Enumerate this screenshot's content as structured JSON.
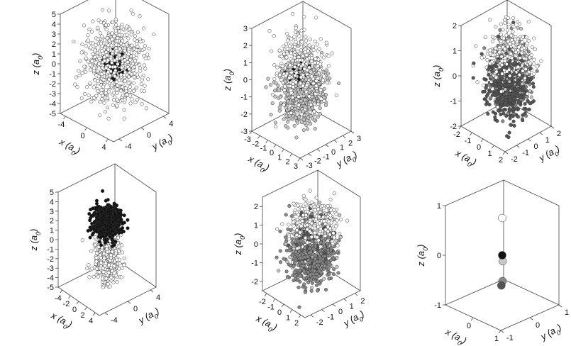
{
  "figure": {
    "panel_count": 6,
    "point_style": "circles",
    "colors": {
      "white_point_fill": "#ffffff",
      "light_point_fill": "#c8c8c8",
      "gray_point_fill": "#8a8a8a",
      "dark_point_fill": "#555555",
      "black_point_fill": "#111111",
      "point_stroke": "#333333",
      "frame": "#444444"
    }
  },
  "chart_data": [
    {
      "id": "panel-1",
      "type": "scatter",
      "projection": "3d",
      "xlabel": "x (a",
      "ylabel": "y (a",
      "zlabel": "z (a",
      "label_subscript": "0",
      "label_close": ")",
      "xlim": [
        -5,
        5
      ],
      "ylim": [
        -5,
        5
      ],
      "zlim": [
        -5,
        5
      ],
      "x_ticks": [
        -4,
        0,
        4
      ],
      "y_ticks": [
        -4,
        0,
        4
      ],
      "z_ticks": [
        -5,
        -4,
        -3,
        -2,
        -1,
        0,
        1,
        2,
        3,
        4,
        5
      ],
      "x_tick_labels": [
        "-4",
        "0",
        "4"
      ],
      "y_tick_labels": [
        "-4",
        "0",
        "4"
      ],
      "z_tick_labels": [
        "-5",
        "-4",
        "-3",
        "-2",
        "-1",
        "0",
        "1",
        "2",
        "3",
        "4",
        "5"
      ],
      "clouds": [
        {
          "shade": "white",
          "count": 720,
          "center": [
            0,
            0,
            0
          ],
          "sd": [
            1.9,
            1.9,
            1.9
          ],
          "seed": 11
        },
        {
          "shade": "black",
          "count": 80,
          "center": [
            0,
            0,
            -0.1
          ],
          "sd": [
            0.6,
            0.6,
            0.6
          ],
          "seed": 12
        }
      ],
      "points": []
    },
    {
      "id": "panel-2",
      "type": "scatter",
      "projection": "3d",
      "xlabel": "x (a",
      "ylabel": "y (a",
      "zlabel": "z (a",
      "label_subscript": "0",
      "label_close": ")",
      "xlim": [
        -3,
        3
      ],
      "ylim": [
        -3,
        3
      ],
      "zlim": [
        -3,
        3
      ],
      "x_ticks": [
        -3,
        -2,
        -1,
        0,
        1,
        2,
        3
      ],
      "y_ticks": [
        -3,
        -2,
        -1,
        0,
        1,
        2,
        3
      ],
      "z_ticks": [
        -3,
        -2,
        -1,
        0,
        1,
        2,
        3
      ],
      "x_tick_labels": [
        "-3",
        "-2",
        "-1",
        "0",
        "1",
        "2",
        "3"
      ],
      "y_tick_labels": [
        "-3",
        "-2",
        "-1",
        "0",
        "1",
        "2",
        "3"
      ],
      "z_tick_labels": [
        "-3",
        "-2",
        "-1",
        "0",
        "1",
        "2",
        "3"
      ],
      "clouds": [
        {
          "shade": "white",
          "count": 560,
          "center": [
            0,
            0,
            0.4
          ],
          "sd": [
            1.0,
            1.0,
            1.0
          ],
          "seed": 21
        },
        {
          "shade": "light",
          "count": 560,
          "center": [
            0,
            0,
            -0.6
          ],
          "sd": [
            1.0,
            1.0,
            0.9
          ],
          "seed": 22
        },
        {
          "shade": "black",
          "count": 70,
          "center": [
            0,
            0,
            0.2
          ],
          "sd": [
            0.4,
            0.4,
            0.4
          ],
          "seed": 23
        }
      ],
      "points": []
    },
    {
      "id": "panel-3",
      "type": "scatter",
      "projection": "3d",
      "xlabel": "x (a",
      "ylabel": "y (a",
      "zlabel": "z (a",
      "label_subscript": "0",
      "label_close": ")",
      "xlim": [
        -2,
        2
      ],
      "ylim": [
        -2,
        2
      ],
      "zlim": [
        -2,
        2
      ],
      "x_ticks": [
        -2,
        -1,
        0,
        1,
        2
      ],
      "y_ticks": [
        -2,
        -1,
        0,
        1,
        2
      ],
      "z_ticks": [
        -2,
        -1,
        0,
        1,
        2
      ],
      "x_tick_labels": [
        "-2",
        "-1",
        "0",
        "1",
        "2"
      ],
      "y_tick_labels": [
        "-2",
        "-1",
        "0",
        "1",
        "2"
      ],
      "z_tick_labels": [
        "-2",
        "-1",
        "0",
        "1",
        "2"
      ],
      "clouds": [
        {
          "shade": "white",
          "count": 420,
          "center": [
            0.1,
            0.2,
            0.7
          ],
          "sd": [
            0.7,
            0.7,
            0.55
          ],
          "seed": 31
        },
        {
          "shade": "dark",
          "count": 450,
          "center": [
            0.6,
            -0.4,
            -0.2
          ],
          "sd": [
            0.65,
            0.6,
            0.6
          ],
          "seed": 32
        },
        {
          "shade": "gray",
          "count": 450,
          "center": [
            -0.3,
            0.7,
            -0.3
          ],
          "sd": [
            0.6,
            0.6,
            0.6
          ],
          "seed": 33
        },
        {
          "shade": "light",
          "count": 200,
          "center": [
            0.2,
            0.3,
            0.2
          ],
          "sd": [
            0.5,
            0.5,
            0.5
          ],
          "seed": 34
        }
      ],
      "points": []
    },
    {
      "id": "panel-4",
      "type": "scatter",
      "projection": "3d",
      "xlabel": "x (a",
      "ylabel": "y (a",
      "zlabel": "z (a",
      "label_subscript": "0",
      "label_close": ")",
      "xlim": [
        -5,
        5
      ],
      "ylim": [
        -5,
        5
      ],
      "zlim": [
        -5,
        5
      ],
      "x_ticks": [
        -4,
        -2,
        0,
        2,
        4
      ],
      "y_ticks": [
        -4,
        0,
        4
      ],
      "z_ticks": [
        -5,
        -4,
        -3,
        -2,
        -1,
        0,
        1,
        2,
        3,
        4,
        5
      ],
      "x_tick_labels": [
        "-4",
        "-2",
        "0",
        "2",
        "4"
      ],
      "y_tick_labels": [
        "-4",
        "0",
        "4"
      ],
      "z_tick_labels": [
        "-5",
        "-4",
        "-3",
        "-2",
        "-1",
        "0",
        "1",
        "2",
        "3",
        "4",
        "5"
      ],
      "clouds": [
        {
          "shade": "white",
          "count": 560,
          "center": [
            0,
            0,
            -2.0
          ],
          "sd": [
            0.9,
            0.9,
            1.2
          ],
          "seed": 41
        },
        {
          "shade": "black",
          "count": 680,
          "center": [
            0,
            0,
            1.9
          ],
          "sd": [
            1.0,
            1.0,
            0.75
          ],
          "seed": 42
        }
      ],
      "points": []
    },
    {
      "id": "panel-5",
      "type": "scatter",
      "projection": "3d",
      "xlabel": "x (a",
      "ylabel": "y (a",
      "zlabel": "z (a",
      "label_subscript": "0",
      "label_close": ")",
      "xlim": [
        -2.5,
        2.5
      ],
      "ylim": [
        -2.5,
        2.5
      ],
      "zlim": [
        -2.5,
        2.5
      ],
      "x_ticks": [
        -2,
        -1,
        0,
        1,
        2
      ],
      "y_ticks": [
        -2,
        -1,
        0,
        1,
        2
      ],
      "z_ticks": [
        -2,
        -1,
        0,
        1,
        2
      ],
      "x_tick_labels": [
        "-2",
        "-1",
        "0",
        "1",
        "2"
      ],
      "y_tick_labels": [
        "-2",
        "-1",
        "0",
        "1",
        "2"
      ],
      "z_tick_labels": [
        "-2",
        "-1",
        "0",
        "1",
        "2"
      ],
      "clouds": [
        {
          "shade": "white",
          "count": 420,
          "center": [
            0,
            0,
            0.9
          ],
          "sd": [
            0.8,
            0.8,
            0.6
          ],
          "seed": 51
        },
        {
          "shade": "gray",
          "count": 620,
          "center": [
            0.3,
            -0.2,
            -0.4
          ],
          "sd": [
            0.8,
            0.8,
            0.7
          ],
          "seed": 52
        },
        {
          "shade": "light",
          "count": 300,
          "center": [
            -0.2,
            0.3,
            -0.1
          ],
          "sd": [
            0.7,
            0.7,
            0.7
          ],
          "seed": 53
        },
        {
          "shade": "dark",
          "count": 160,
          "center": [
            0.1,
            0.1,
            0.2
          ],
          "sd": [
            0.6,
            0.6,
            0.6
          ],
          "seed": 54
        }
      ],
      "points": []
    },
    {
      "id": "panel-6",
      "type": "scatter",
      "projection": "3d",
      "xlabel": "x (a",
      "ylabel": "y (a",
      "zlabel": "z (a",
      "label_subscript": "0",
      "label_close": ")",
      "xlim": [
        -1,
        1
      ],
      "ylim": [
        -1,
        1
      ],
      "zlim": [
        -1,
        1
      ],
      "x_ticks": [
        0,
        1
      ],
      "y_ticks": [
        -1,
        0,
        1
      ],
      "z_ticks": [
        -1,
        0,
        1
      ],
      "x_tick_labels": [
        "0",
        "1"
      ],
      "y_tick_labels": [
        "-1",
        "0",
        "1"
      ],
      "z_tick_labels": [
        "-1",
        "0",
        "1"
      ],
      "clouds": [],
      "points": [
        {
          "shade": "white",
          "x": 0,
          "y": 0,
          "z": 0.75,
          "r": 5.5
        },
        {
          "shade": "black",
          "x": 0,
          "y": 0,
          "z": 0.0,
          "r": 5.5
        },
        {
          "shade": "dark",
          "x": 0.6,
          "y": -0.6,
          "z": -0.3,
          "r": 5.5
        },
        {
          "shade": "light",
          "x": -0.35,
          "y": 0.35,
          "z": -0.3,
          "r": 5.5
        },
        {
          "shade": "gray",
          "x": -0.25,
          "y": 0.25,
          "z": -0.65,
          "r": 5.5
        }
      ]
    }
  ]
}
